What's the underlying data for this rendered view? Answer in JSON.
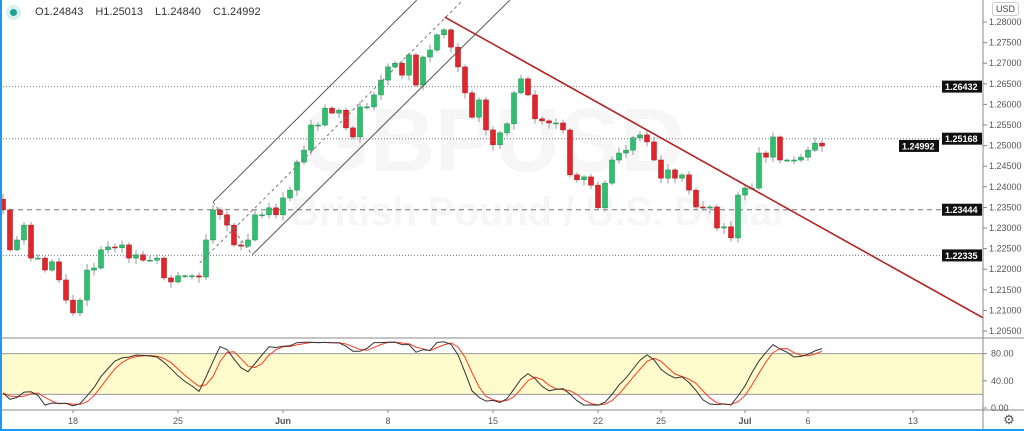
{
  "legend": {
    "open": "O1.24843",
    "high": "H1.25013",
    "low": "L1.24840",
    "close": "C1.24992"
  },
  "currency_badge": "USD",
  "watermark": {
    "symbol": "GBPUSD",
    "description": "British Pound / U.S. Dollar"
  },
  "colors": {
    "up": "#2fbf6f",
    "down": "#e2242b",
    "wick": "#9a9a9a",
    "trendline": "#b22222",
    "stoch_k": "#333333",
    "stoch_d": "#ff3b1f",
    "stoch_band": "#fffbcc",
    "accent": "#2196f3"
  },
  "chart_data": {
    "type": "candlestick",
    "symbol": "GBPUSD",
    "first_open": 1.237,
    "closes": [
      1.2344,
      1.2247,
      1.2271,
      1.2307,
      1.2227,
      1.2227,
      1.2198,
      1.2218,
      1.2174,
      1.2125,
      1.2094,
      1.2125,
      1.2198,
      1.2203,
      1.2247,
      1.2254,
      1.2252,
      1.2259,
      1.2227,
      1.2235,
      1.2222,
      1.2222,
      1.2227,
      1.2179,
      1.2169,
      1.2184,
      1.2184,
      1.2184,
      1.2181,
      1.2271,
      1.2344,
      1.2332,
      1.2307,
      1.2259,
      1.2256,
      1.2271,
      1.2332,
      1.2332,
      1.2349,
      1.2332,
      1.2373,
      1.2392,
      1.246,
      1.2489,
      1.255,
      1.255,
      1.2591,
      1.2579,
      1.2586,
      1.2543,
      1.2521,
      1.2594,
      1.2594,
      1.2623,
      1.2659,
      1.2691,
      1.27,
      1.2671,
      1.272,
      1.2647,
      1.2715,
      1.2732,
      1.2769,
      1.2781,
      1.2739,
      1.2691,
      1.2628,
      1.2569,
      1.2611,
      1.2538,
      1.2502,
      1.2531,
      1.2553,
      1.2628,
      1.2662,
      1.2623,
      1.2565,
      1.256,
      1.2555,
      1.2555,
      1.2538,
      1.2429,
      1.2417,
      1.2424,
      1.2404,
      1.2349,
      1.2409,
      1.2465,
      1.2482,
      1.2489,
      1.2519,
      1.2526,
      1.2509,
      1.2465,
      1.2421,
      1.2441,
      1.2421,
      1.2429,
      1.2392,
      1.2351,
      1.2349,
      1.2351,
      1.23,
      1.2303,
      1.2276,
      1.238,
      1.2397,
      1.2397,
      1.2482,
      1.2472,
      1.2521,
      1.2465,
      1.2465,
      1.2465,
      1.2472,
      1.2489,
      1.2506,
      1.2499
    ],
    "y_ticks": [
      "1.28000",
      "1.27500",
      "1.27000",
      "1.26500",
      "1.26000",
      "1.25500",
      "1.25000",
      "1.24500",
      "1.24000",
      "1.23500",
      "1.23000",
      "1.22500",
      "1.22000",
      "1.21500",
      "1.21000",
      "1.20500"
    ],
    "ylim": [
      1.202,
      1.2853
    ],
    "x_ticks": [
      {
        "label": "18",
        "candle": 10
      },
      {
        "label": "25",
        "candle": 25
      },
      {
        "label": "Jun",
        "candle": 40
      },
      {
        "label": "8",
        "candle": 55
      },
      {
        "label": "15",
        "candle": 70
      },
      {
        "label": "22",
        "candle": 85
      },
      {
        "label": "25",
        "candle": 94
      },
      {
        "label": "Jul",
        "candle": 106
      },
      {
        "label": "6",
        "candle": 115
      },
      {
        "label": "13",
        "candle": 130
      }
    ],
    "levels": [
      {
        "price": 1.26432,
        "label": "1.26432",
        "style": "dotted"
      },
      {
        "price": 1.25168,
        "label": "1.25168",
        "style": "dotted"
      },
      {
        "price": 1.23444,
        "label": "1.23444",
        "style": "dashed"
      },
      {
        "price": 1.22335,
        "label": "1.22335",
        "style": "dotted"
      }
    ],
    "last_price": {
      "price": 1.24992,
      "label": "1.24992"
    },
    "drawings": {
      "channel_upper": [
        [
          30,
          1.2363
        ],
        [
          59.1,
          1.2853
        ]
      ],
      "channel_mid": [
        [
          28.1,
          1.2215
        ],
        [
          65.7,
          1.2853
        ]
      ],
      "channel_lower": [
        [
          35.6,
          1.2235
        ],
        [
          72.4,
          1.2853
        ]
      ],
      "channel_edge": [
        [
          30,
          1.2363
        ],
        [
          35.6,
          1.2235
        ]
      ],
      "trendline": [
        [
          63.1,
          1.2812
        ],
        [
          140,
          1.2082
        ]
      ]
    },
    "stochastic": {
      "k_period": 14,
      "smooth": 3,
      "d_period": 3,
      "upper": 80,
      "lower": 20,
      "ticks": [
        "80.00",
        "40.00",
        "0.00"
      ],
      "tick_values": [
        80,
        40,
        0
      ]
    }
  }
}
